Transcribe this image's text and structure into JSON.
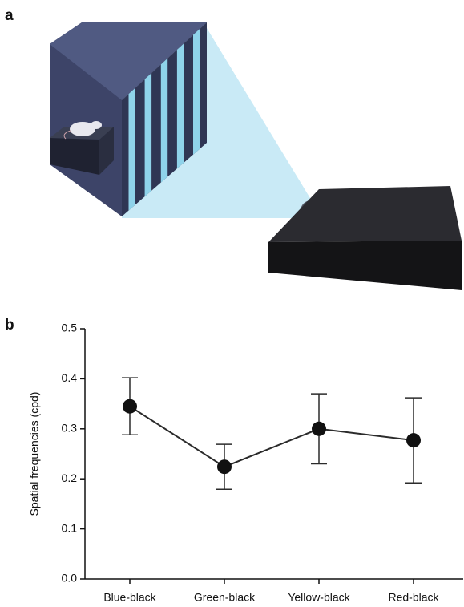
{
  "panel_labels": [
    "a",
    "b"
  ],
  "chart_data": {
    "type": "line",
    "y_label": "Spatial frequencies (cpd)",
    "categories": [
      "Blue-black",
      "Green-black",
      "Yellow-black",
      "Red-black"
    ],
    "values": [
      0.345,
      0.224,
      0.3,
      0.277
    ],
    "errors": [
      0.057,
      0.045,
      0.07,
      0.085
    ],
    "color": "#2b2b2b",
    "ylim": [
      0,
      0.5
    ],
    "yticks": [
      {
        "value": 0,
        "label": "0.0"
      },
      0.1,
      0.2,
      0.3,
      0.4,
      0.5
    ]
  }
}
